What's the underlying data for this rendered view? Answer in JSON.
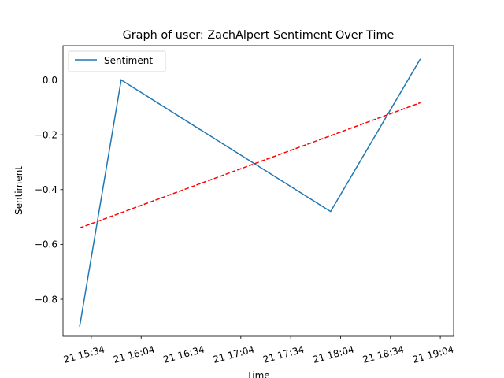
{
  "chart_data": {
    "type": "line",
    "title": "Graph of user: ZachAlpert Sentiment Over Time",
    "xlabel": "Time",
    "ylabel": "Sentiment",
    "x_unit": "time",
    "x_range": [
      "15:17",
      "19:12"
    ],
    "ylim": [
      -0.935,
      0.125
    ],
    "x_ticks": [
      {
        "t": "15:34",
        "label": "21 15:34"
      },
      {
        "t": "16:04",
        "label": "21 16:04"
      },
      {
        "t": "16:34",
        "label": "21 16:34"
      },
      {
        "t": "17:04",
        "label": "21 17:04"
      },
      {
        "t": "17:34",
        "label": "21 17:34"
      },
      {
        "t": "18:04",
        "label": "21 18:04"
      },
      {
        "t": "18:34",
        "label": "21 18:34"
      },
      {
        "t": "19:04",
        "label": "21 19:04"
      }
    ],
    "y_ticks": [
      {
        "v": 0.0,
        "label": "0.0"
      },
      {
        "v": -0.2,
        "label": "−0.2"
      },
      {
        "v": -0.4,
        "label": "−0.4"
      },
      {
        "v": -0.6,
        "label": "−0.6"
      },
      {
        "v": -0.8,
        "label": "−0.8"
      }
    ],
    "grid": false,
    "legend_position": "top-left",
    "series": [
      {
        "name": "Sentiment",
        "color": "#1f77b4",
        "style": "solid",
        "points": [
          {
            "t": "15:27",
            "y": -0.9
          },
          {
            "t": "15:52",
            "y": 0.0
          },
          {
            "t": "17:58",
            "y": -0.48
          },
          {
            "t": "18:52",
            "y": 0.077
          }
        ]
      },
      {
        "color": "#ff0000",
        "style": "dashed",
        "points": [
          {
            "t": "15:27",
            "y": -0.54
          },
          {
            "t": "18:52",
            "y": -0.083
          }
        ]
      }
    ]
  }
}
